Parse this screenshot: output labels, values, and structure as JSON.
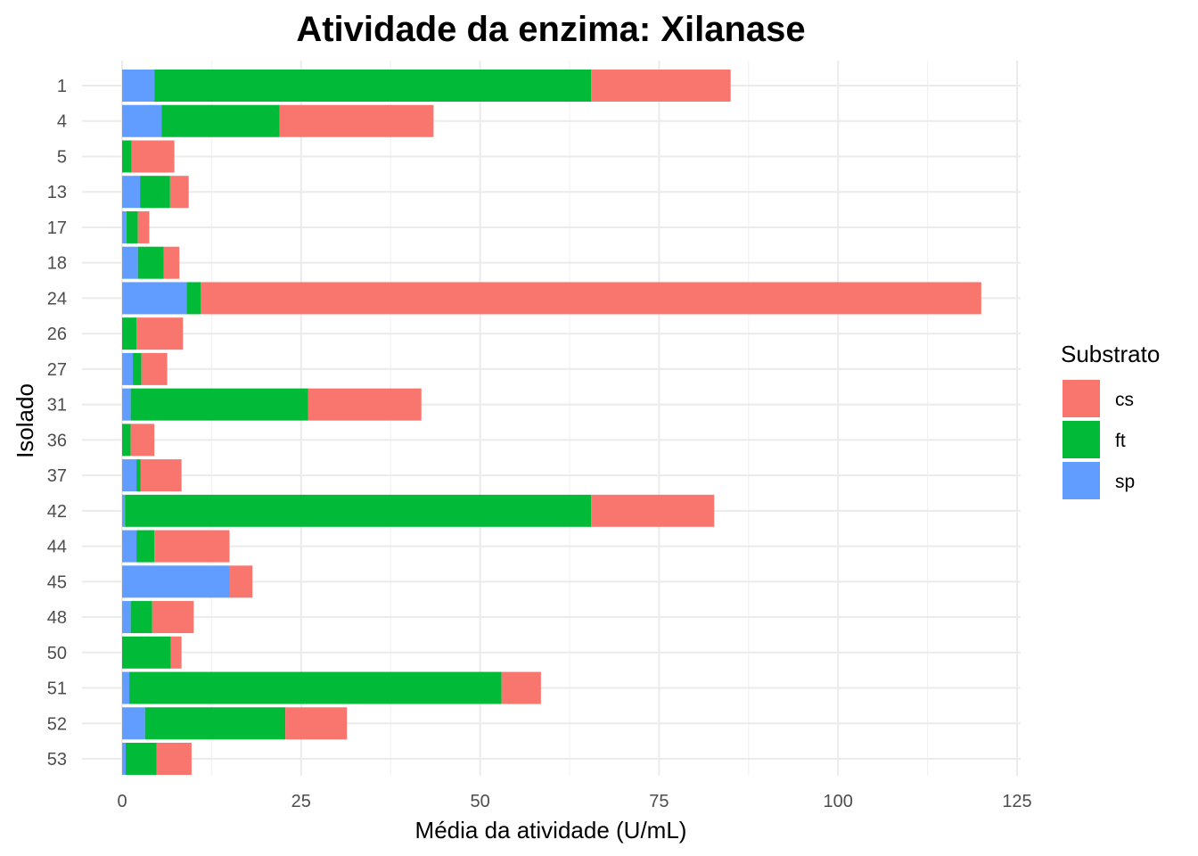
{
  "chart_data": {
    "type": "bar",
    "orientation": "horizontal",
    "stacked": true,
    "title": "Atividade da enzima: Xilanase",
    "xlabel": "Média da atividade (U/mL)",
    "ylabel": "Isolado",
    "xlim": [
      0,
      125
    ],
    "xticks": [
      0,
      25,
      50,
      75,
      100,
      125
    ],
    "grid": true,
    "legend": {
      "title": "Substrato",
      "position": "right"
    },
    "categories": [
      "1",
      "4",
      "5",
      "13",
      "17",
      "18",
      "24",
      "26",
      "27",
      "31",
      "36",
      "37",
      "42",
      "44",
      "45",
      "48",
      "50",
      "51",
      "52",
      "53"
    ],
    "series": [
      {
        "name": "sp",
        "color": "#619CFF",
        "values": [
          4.5,
          5.5,
          0.0,
          2.5,
          0.6,
          2.2,
          9.0,
          0.0,
          1.5,
          1.2,
          0.0,
          2.0,
          0.4,
          2.0,
          15.0,
          1.2,
          0.0,
          1.0,
          3.2,
          0.5
        ]
      },
      {
        "name": "ft",
        "color": "#00BA38",
        "values": [
          61.0,
          16.5,
          1.3,
          4.2,
          1.6,
          3.6,
          2.0,
          2.0,
          1.2,
          24.8,
          1.2,
          0.6,
          65.1,
          2.5,
          0.0,
          3.0,
          6.8,
          52.0,
          19.6,
          4.3
        ]
      },
      {
        "name": "cs",
        "color": "#F8766D",
        "values": [
          19.5,
          21.5,
          6.0,
          2.6,
          1.6,
          2.2,
          109.0,
          6.5,
          3.6,
          15.8,
          3.3,
          5.7,
          17.2,
          10.5,
          3.2,
          5.8,
          1.5,
          5.5,
          8.6,
          4.9
        ]
      }
    ],
    "legend_order": [
      "cs",
      "ft",
      "sp"
    ]
  }
}
